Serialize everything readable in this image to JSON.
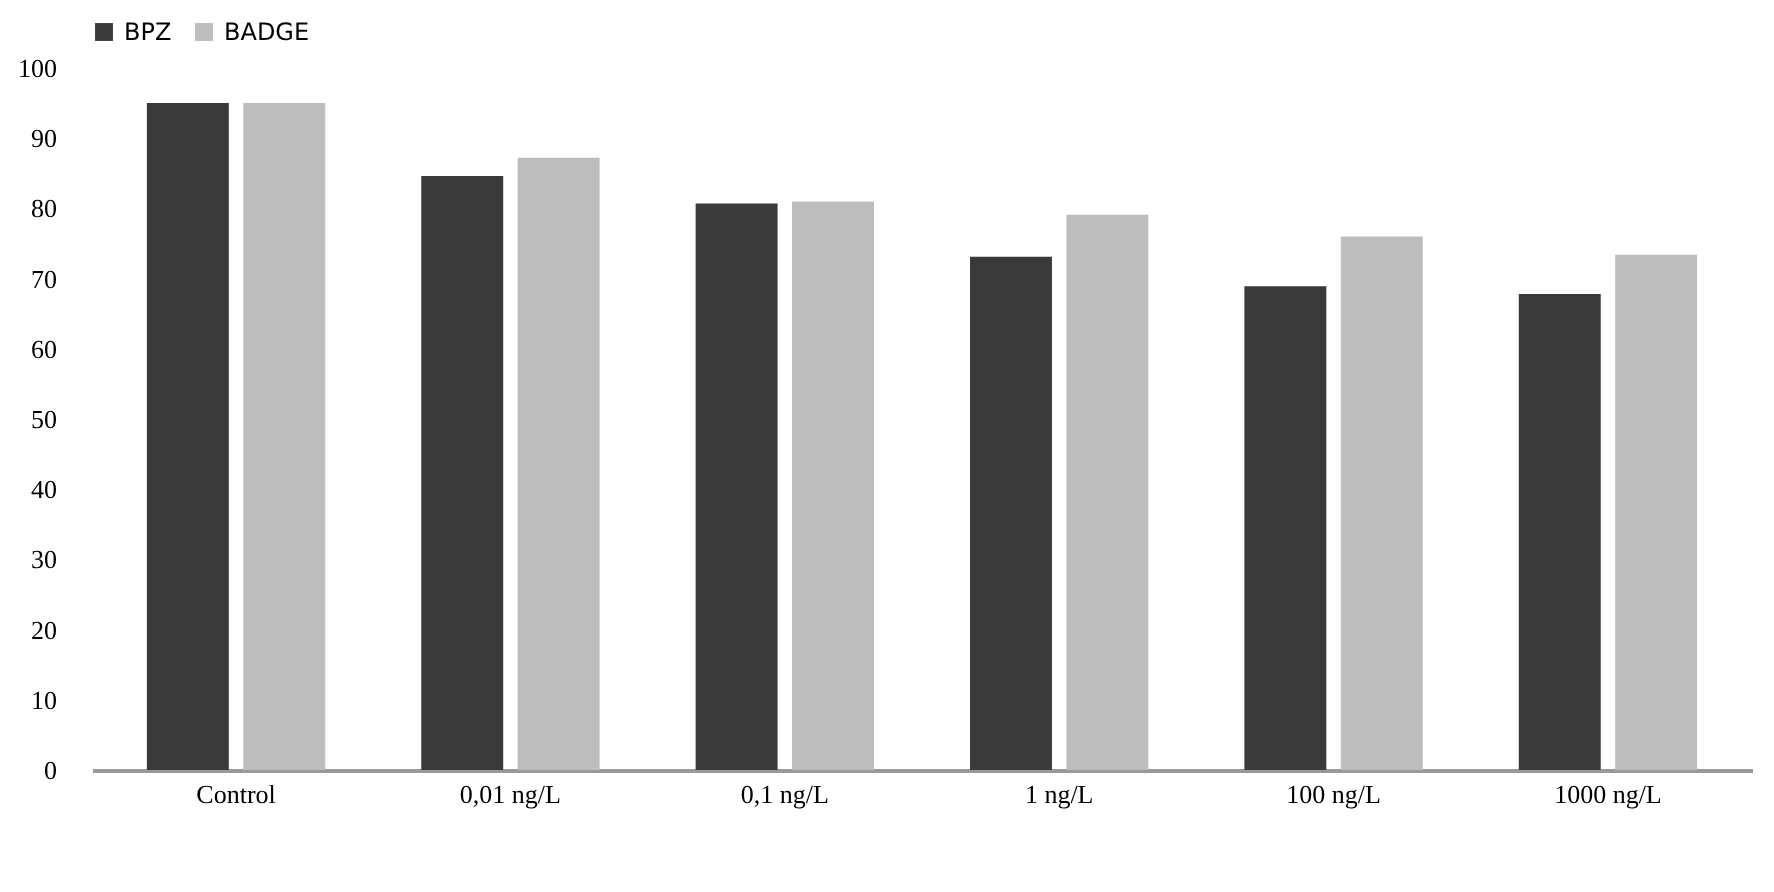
{
  "chart_data": {
    "type": "bar",
    "categories": [
      "Control",
      "0,01 ng/L",
      "0,1 ng/L",
      "1 ng/L",
      "100 ng/L",
      "1000 ng/L"
    ],
    "series": [
      {
        "name": "BPZ",
        "color": "#3a3a3a",
        "values": [
          95,
          84.6,
          80.7,
          73.1,
          68.9,
          67.8
        ]
      },
      {
        "name": "BADGE",
        "color": "#bdbdbd",
        "values": [
          95,
          87.2,
          81,
          79.1,
          76,
          73.4
        ]
      }
    ],
    "ylim": [
      0,
      100
    ],
    "yticks": [
      0,
      10,
      20,
      30,
      40,
      50,
      60,
      70,
      80,
      90,
      100
    ],
    "grid": false,
    "legend": "top"
  }
}
